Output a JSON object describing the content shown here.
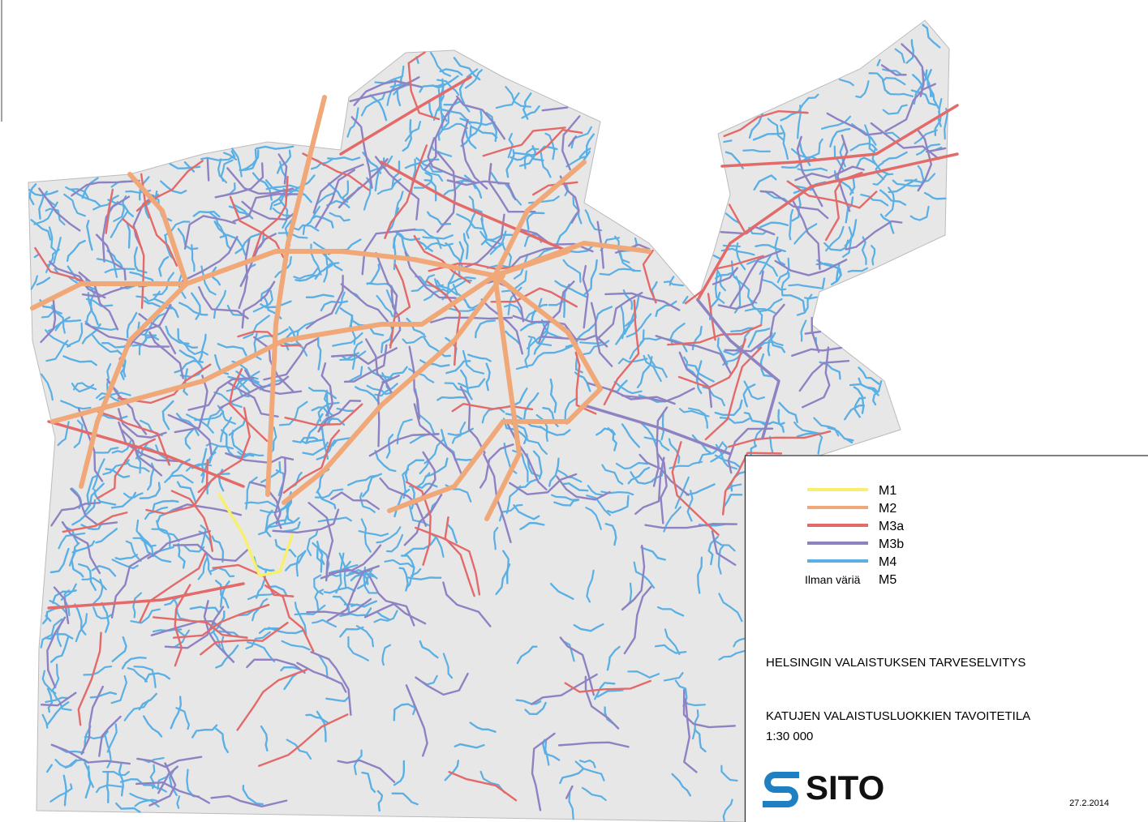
{
  "legend": {
    "items": [
      {
        "label": "M1",
        "color": "#f7ef6e"
      },
      {
        "label": "M2",
        "color": "#f0a878"
      },
      {
        "label": "M3a",
        "color": "#e46a6a"
      },
      {
        "label": "M3b",
        "color": "#8f82c2"
      },
      {
        "label": "M4",
        "color": "#5ab0e4"
      },
      {
        "label": "M5",
        "prefix": "Ilman väriä"
      }
    ]
  },
  "title": "HELSINGIN VALAISTUKSEN TARVESELVITYS",
  "subtitle": "KATUJEN VALAISTUSLUOKKIEN TAVOITETILA",
  "scale": "1:30 000",
  "logo": "SITO",
  "date": "27.2.2014"
}
